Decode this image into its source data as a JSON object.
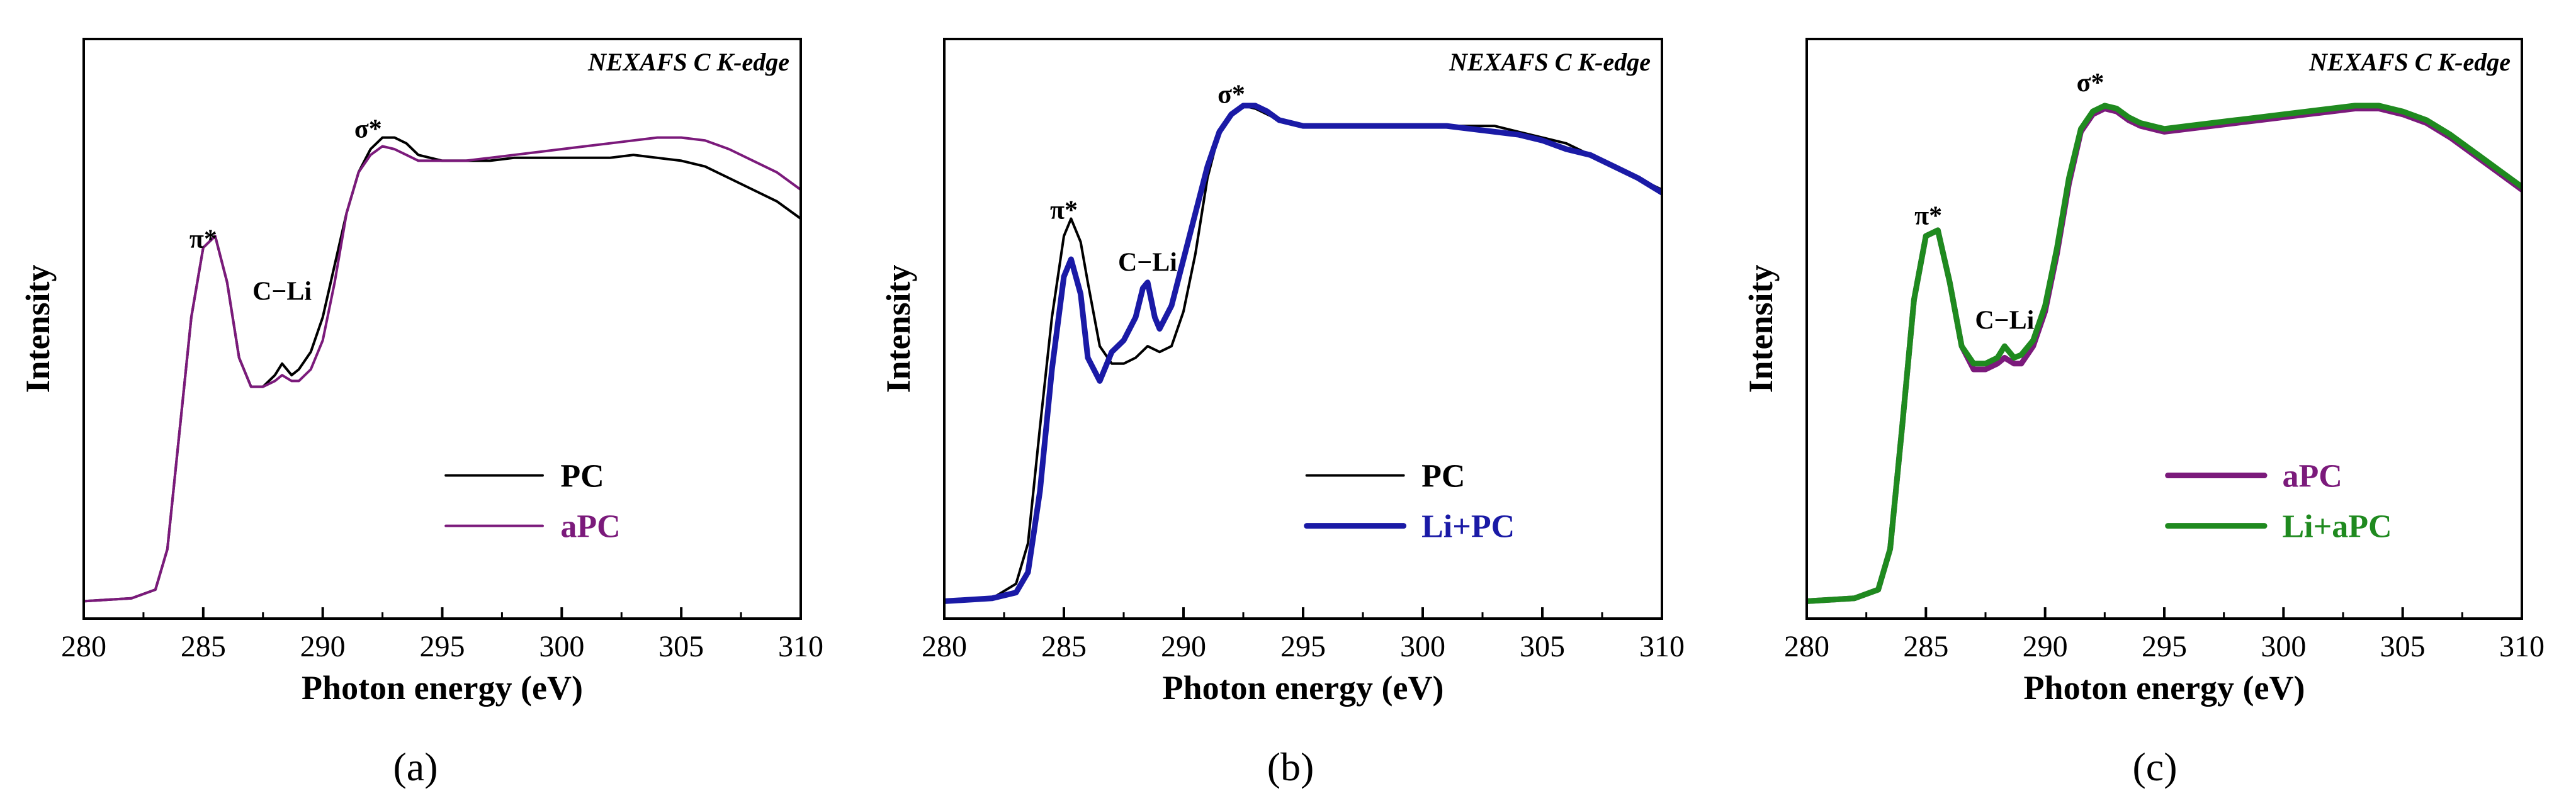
{
  "figure": {
    "panel_labels": [
      "(a)",
      "(b)",
      "(c)"
    ]
  },
  "chart_data": [
    {
      "type": "line",
      "panel": "a",
      "note": "NEXAFS C K-edge",
      "xlabel": "Photon energy (eV)",
      "ylabel": "Intensity",
      "xlim": [
        280,
        310
      ],
      "ylim": [
        0,
        1
      ],
      "xticks": [
        280,
        285,
        290,
        295,
        300,
        305,
        310
      ],
      "legend_position": "bottom-right",
      "annotations": [
        {
          "text": "π*",
          "x": 285.0,
          "y": 0.64
        },
        {
          "text": "C−Li",
          "x": 288.3,
          "y": 0.55
        },
        {
          "text": "σ*",
          "x": 291.9,
          "y": 0.83
        }
      ],
      "series": [
        {
          "name": "PC",
          "color": "#000000",
          "stroke": 4,
          "x": [
            280,
            282,
            283,
            283.5,
            284,
            284.5,
            285,
            285.5,
            286,
            286.5,
            287,
            287.5,
            288,
            288.3,
            288.7,
            289,
            289.5,
            290,
            290.5,
            291,
            291.5,
            292,
            292.5,
            293,
            293.5,
            294,
            295,
            296,
            297,
            298,
            299,
            300,
            301,
            302,
            303,
            304,
            305,
            306,
            307,
            308,
            309,
            310
          ],
          "y": [
            0.03,
            0.035,
            0.05,
            0.12,
            0.32,
            0.52,
            0.64,
            0.66,
            0.58,
            0.45,
            0.4,
            0.4,
            0.42,
            0.44,
            0.42,
            0.43,
            0.46,
            0.52,
            0.61,
            0.7,
            0.77,
            0.81,
            0.83,
            0.83,
            0.82,
            0.8,
            0.79,
            0.79,
            0.79,
            0.795,
            0.795,
            0.795,
            0.795,
            0.795,
            0.8,
            0.795,
            0.79,
            0.78,
            0.76,
            0.74,
            0.72,
            0.69
          ]
        },
        {
          "name": "aPC",
          "color": "#7B1A7B",
          "stroke": 4,
          "x": [
            280,
            282,
            283,
            283.5,
            284,
            284.5,
            285,
            285.5,
            286,
            286.5,
            287,
            287.5,
            288,
            288.3,
            288.7,
            289,
            289.5,
            290,
            290.5,
            291,
            291.5,
            292,
            292.5,
            293,
            293.5,
            294,
            295,
            296,
            297,
            298,
            299,
            300,
            301,
            302,
            303,
            304,
            305,
            306,
            307,
            308,
            309,
            310
          ],
          "y": [
            0.03,
            0.035,
            0.05,
            0.12,
            0.32,
            0.52,
            0.64,
            0.66,
            0.58,
            0.45,
            0.4,
            0.4,
            0.41,
            0.42,
            0.41,
            0.41,
            0.43,
            0.48,
            0.58,
            0.7,
            0.77,
            0.8,
            0.815,
            0.81,
            0.8,
            0.79,
            0.79,
            0.79,
            0.795,
            0.8,
            0.805,
            0.81,
            0.815,
            0.82,
            0.825,
            0.83,
            0.83,
            0.825,
            0.81,
            0.79,
            0.77,
            0.74
          ]
        }
      ]
    },
    {
      "type": "line",
      "panel": "b",
      "note": "NEXAFS C K-edge",
      "xlabel": "Photon energy (eV)",
      "ylabel": "Intensity",
      "xlim": [
        280,
        310
      ],
      "ylim": [
        0,
        1
      ],
      "xticks": [
        280,
        285,
        290,
        295,
        300,
        305,
        310
      ],
      "legend_position": "bottom-right",
      "annotations": [
        {
          "text": "π*",
          "x": 285.0,
          "y": 0.69
        },
        {
          "text": "C−Li",
          "x": 288.5,
          "y": 0.6
        },
        {
          "text": "σ*",
          "x": 292.0,
          "y": 0.89
        }
      ],
      "series": [
        {
          "name": "PC",
          "color": "#000000",
          "stroke": 4,
          "x": [
            280,
            282,
            283,
            283.5,
            284,
            284.5,
            285,
            285.3,
            285.7,
            286,
            286.5,
            287,
            287.5,
            288,
            288.5,
            289,
            289.5,
            290,
            290.5,
            291,
            291.5,
            292,
            292.5,
            293,
            293.5,
            294,
            295,
            296,
            297,
            298,
            299,
            300,
            301,
            302,
            303,
            304,
            305,
            306,
            307,
            308,
            309,
            310
          ],
          "y": [
            0.03,
            0.035,
            0.06,
            0.13,
            0.33,
            0.52,
            0.66,
            0.69,
            0.65,
            0.58,
            0.47,
            0.44,
            0.44,
            0.45,
            0.47,
            0.46,
            0.47,
            0.53,
            0.63,
            0.76,
            0.84,
            0.87,
            0.885,
            0.88,
            0.87,
            0.86,
            0.85,
            0.85,
            0.85,
            0.85,
            0.85,
            0.85,
            0.85,
            0.85,
            0.85,
            0.84,
            0.83,
            0.82,
            0.8,
            0.78,
            0.76,
            0.74
          ]
        },
        {
          "name": "Li+PC",
          "color": "#1A1AA6",
          "stroke": 9,
          "x": [
            280,
            282,
            283,
            283.5,
            284,
            284.5,
            285,
            285.3,
            285.7,
            286,
            286.5,
            287,
            287.5,
            288,
            288.3,
            288.5,
            288.8,
            289,
            289.5,
            290,
            290.5,
            291,
            291.5,
            292,
            292.5,
            293,
            293.5,
            294,
            295,
            296,
            297,
            298,
            299,
            300,
            301,
            302,
            303,
            304,
            305,
            306,
            307,
            308,
            309,
            310
          ],
          "y": [
            0.03,
            0.035,
            0.045,
            0.08,
            0.22,
            0.43,
            0.59,
            0.62,
            0.56,
            0.45,
            0.41,
            0.46,
            0.48,
            0.52,
            0.57,
            0.58,
            0.52,
            0.5,
            0.54,
            0.62,
            0.7,
            0.78,
            0.84,
            0.87,
            0.885,
            0.885,
            0.875,
            0.86,
            0.85,
            0.85,
            0.85,
            0.85,
            0.85,
            0.85,
            0.85,
            0.845,
            0.84,
            0.835,
            0.825,
            0.81,
            0.8,
            0.78,
            0.76,
            0.735
          ]
        }
      ]
    },
    {
      "type": "line",
      "panel": "c",
      "note": "NEXAFS C K-edge",
      "xlabel": "Photon energy (eV)",
      "ylabel": "Intensity",
      "xlim": [
        280,
        310
      ],
      "ylim": [
        0,
        1
      ],
      "xticks": [
        280,
        285,
        290,
        295,
        300,
        305,
        310
      ],
      "legend_position": "bottom-right",
      "annotations": [
        {
          "text": "π*",
          "x": 285.1,
          "y": 0.68
        },
        {
          "text": "C−Li",
          "x": 288.3,
          "y": 0.5
        },
        {
          "text": "σ*",
          "x": 291.9,
          "y": 0.91
        }
      ],
      "series": [
        {
          "name": "aPC",
          "color": "#7B1A7B",
          "stroke": 9,
          "x": [
            280,
            282,
            283,
            283.5,
            284,
            284.5,
            285,
            285.5,
            286,
            286.5,
            287,
            287.5,
            288,
            288.3,
            288.7,
            289,
            289.5,
            290,
            290.5,
            291,
            291.5,
            292,
            292.5,
            293,
            293.5,
            294,
            295,
            296,
            297,
            298,
            299,
            300,
            301,
            302,
            303,
            304,
            305,
            306,
            307,
            308,
            309,
            310
          ],
          "y": [
            0.03,
            0.035,
            0.05,
            0.12,
            0.33,
            0.55,
            0.66,
            0.67,
            0.58,
            0.47,
            0.43,
            0.43,
            0.44,
            0.45,
            0.44,
            0.44,
            0.47,
            0.53,
            0.63,
            0.75,
            0.84,
            0.87,
            0.88,
            0.875,
            0.86,
            0.85,
            0.84,
            0.845,
            0.85,
            0.855,
            0.86,
            0.865,
            0.87,
            0.875,
            0.88,
            0.88,
            0.87,
            0.855,
            0.83,
            0.8,
            0.77,
            0.74
          ]
        },
        {
          "name": "Li+aPC",
          "color": "#1F8A1F",
          "stroke": 9,
          "x": [
            280,
            282,
            283,
            283.5,
            284,
            284.5,
            285,
            285.5,
            286,
            286.5,
            287,
            287.5,
            288,
            288.3,
            288.7,
            289,
            289.5,
            290,
            290.5,
            291,
            291.5,
            292,
            292.5,
            293,
            293.5,
            294,
            295,
            296,
            297,
            298,
            299,
            300,
            301,
            302,
            303,
            304,
            305,
            306,
            307,
            308,
            309,
            310
          ],
          "y": [
            0.03,
            0.035,
            0.05,
            0.12,
            0.33,
            0.55,
            0.66,
            0.67,
            0.58,
            0.47,
            0.44,
            0.44,
            0.45,
            0.47,
            0.45,
            0.455,
            0.48,
            0.54,
            0.64,
            0.76,
            0.845,
            0.875,
            0.885,
            0.88,
            0.865,
            0.855,
            0.845,
            0.85,
            0.855,
            0.86,
            0.865,
            0.87,
            0.875,
            0.88,
            0.885,
            0.885,
            0.875,
            0.86,
            0.835,
            0.805,
            0.775,
            0.745
          ]
        }
      ]
    }
  ]
}
